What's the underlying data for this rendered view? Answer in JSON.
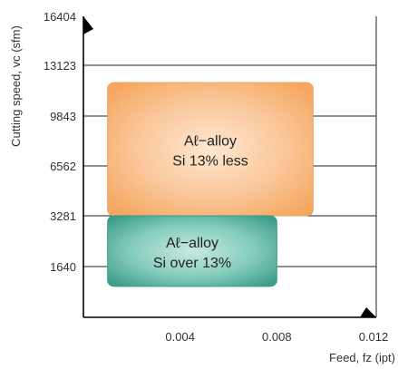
{
  "chart_data": {
    "type": "area",
    "title": "",
    "xlabel": "Feed, fz (ipt)",
    "ylabel": "Cutting speed, vc (sfm)",
    "x_ticks": [
      "0.004",
      "0.008",
      "0.012"
    ],
    "x_tick_values": [
      0.004,
      0.008,
      0.012
    ],
    "xlim": [
      0,
      0.012
    ],
    "y_ticks": [
      "16404",
      "13123",
      "9843",
      "6562",
      "3281",
      "1640"
    ],
    "y_tick_values": [
      16404,
      13123,
      9843,
      6562,
      3281,
      1640
    ],
    "grid": "horizontal",
    "regions": [
      {
        "name": "al-alloy-si-13-less",
        "line1": "Aℓ−alloy",
        "line2": "Si 13% less",
        "x": [
          0.001,
          0.0095
        ],
        "y": [
          3281,
          12000
        ],
        "color": "#f6ae6a"
      },
      {
        "name": "al-alloy-si-over-13",
        "line1": "Aℓ−alloy",
        "line2": "Si over 13%",
        "x": [
          0.001,
          0.008
        ],
        "y": [
          1000,
          3281
        ],
        "color": "#3aa58f"
      }
    ]
  }
}
